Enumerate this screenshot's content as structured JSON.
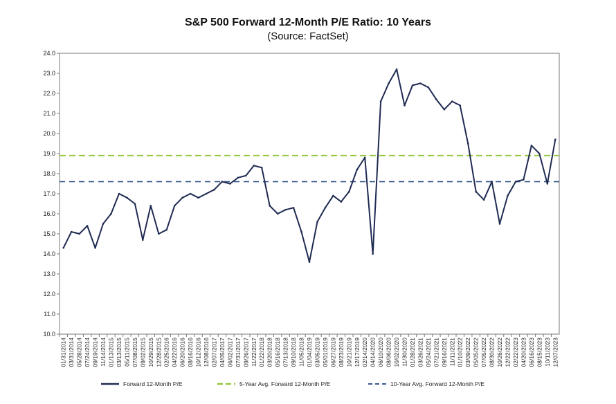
{
  "chart_data": {
    "type": "line",
    "title": "S&P 500 Forward 12-Month P/E Ratio: 10 Years",
    "subtitle": "(Source: FactSet)",
    "xlabel": "",
    "ylabel": "",
    "ylim": [
      10.0,
      24.0
    ],
    "yticks": [
      "10.0",
      "11.0",
      "12.0",
      "13.0",
      "14.0",
      "15.0",
      "16.0",
      "17.0",
      "18.0",
      "19.0",
      "20.0",
      "21.0",
      "22.0",
      "23.0",
      "24.0"
    ],
    "xticks": [
      "01/31/2014",
      "03/31/2014",
      "05/28/2014",
      "07/24/2014",
      "09/19/2014",
      "11/14/2014",
      "01/13/2015",
      "03/13/2015",
      "05/11/2015",
      "07/08/2015",
      "09/02/2015",
      "10/29/2015",
      "12/28/2015",
      "02/25/2016",
      "04/22/2016",
      "06/20/2016",
      "08/16/2016",
      "10/12/2016",
      "12/08/2016",
      "02/07/2017",
      "04/05/2017",
      "06/02/2017",
      "07/31/2017",
      "09/26/2017",
      "11/22/2017",
      "01/22/2018",
      "03/20/2018",
      "05/16/2018",
      "07/13/2018",
      "09/10/2018",
      "11/05/2018",
      "01/04/2019",
      "03/05/2019",
      "05/01/2019",
      "06/27/2019",
      "08/23/2019",
      "10/21/2019",
      "12/17/2019",
      "02/14/2020",
      "04/14/2020",
      "06/10/2020",
      "08/06/2020",
      "10/02/2020",
      "11/30/2020",
      "01/28/2021",
      "03/26/2021",
      "05/24/2021",
      "07/21/2021",
      "09/16/2021",
      "11/11/2021",
      "01/10/2022",
      "03/09/2022",
      "05/05/2022",
      "07/05/2022",
      "08/30/2022",
      "10/26/2022",
      "12/22/2022",
      "02/22/2023",
      "04/20/2023",
      "06/16/2023",
      "08/15/2023",
      "10/11/2023",
      "12/07/2023"
    ],
    "grid": false,
    "legend_position": "bottom",
    "series": [
      {
        "name": "Forward 12-Month P/E",
        "color": "#1f2a52",
        "style": "solid",
        "x": [
          "01/31/2014",
          "03/31/2014",
          "05/28/2014",
          "07/24/2014",
          "09/19/2014",
          "11/14/2014",
          "01/13/2015",
          "03/13/2015",
          "05/11/2015",
          "07/08/2015",
          "09/02/2015",
          "10/29/2015",
          "12/28/2015",
          "02/25/2016",
          "04/22/2016",
          "06/20/2016",
          "08/16/2016",
          "10/12/2016",
          "12/08/2016",
          "02/07/2017",
          "04/05/2017",
          "06/02/2017",
          "07/31/2017",
          "09/26/2017",
          "11/22/2017",
          "01/22/2018",
          "03/20/2018",
          "05/16/2018",
          "07/13/2018",
          "09/10/2018",
          "11/05/2018",
          "01/04/2019",
          "03/05/2019",
          "05/01/2019",
          "06/27/2019",
          "08/23/2019",
          "10/21/2019",
          "12/17/2019",
          "02/14/2020",
          "04/14/2020",
          "06/10/2020",
          "08/06/2020",
          "10/02/2020",
          "11/30/2020",
          "01/28/2021",
          "03/26/2021",
          "05/24/2021",
          "07/21/2021",
          "09/16/2021",
          "11/11/2021",
          "01/10/2022",
          "03/09/2022",
          "05/05/2022",
          "07/05/2022",
          "08/30/2022",
          "10/26/2022",
          "12/22/2022",
          "02/22/2023",
          "04/20/2023",
          "06/16/2023",
          "08/15/2023",
          "10/11/2023",
          "12/07/2023"
        ],
        "values": [
          14.3,
          15.1,
          15.0,
          15.4,
          14.3,
          15.5,
          16.0,
          17.0,
          16.8,
          16.5,
          14.7,
          16.4,
          15.0,
          15.2,
          16.4,
          16.8,
          17.0,
          16.8,
          17.0,
          17.2,
          17.6,
          17.5,
          17.8,
          17.9,
          18.4,
          18.3,
          16.4,
          16.0,
          16.2,
          16.3,
          15.1,
          13.6,
          15.6,
          16.3,
          16.9,
          16.6,
          17.1,
          18.2,
          18.8,
          14.0,
          21.6,
          22.5,
          23.2,
          21.4,
          22.4,
          22.5,
          22.3,
          21.7,
          21.2,
          21.6,
          21.4,
          19.5,
          17.1,
          16.7,
          17.6,
          15.5,
          16.9,
          17.6,
          17.7,
          19.4,
          19.0,
          17.5,
          19.7
        ]
      },
      {
        "name": "5-Year Avg. Forward 12-Month P/E",
        "color": "#92c83e",
        "style": "dashed",
        "value": 18.9
      },
      {
        "name": "10-Year Avg. Forward 12-Month P/E",
        "color": "#3b5a8f",
        "style": "dashed",
        "value": 17.6
      }
    ]
  }
}
